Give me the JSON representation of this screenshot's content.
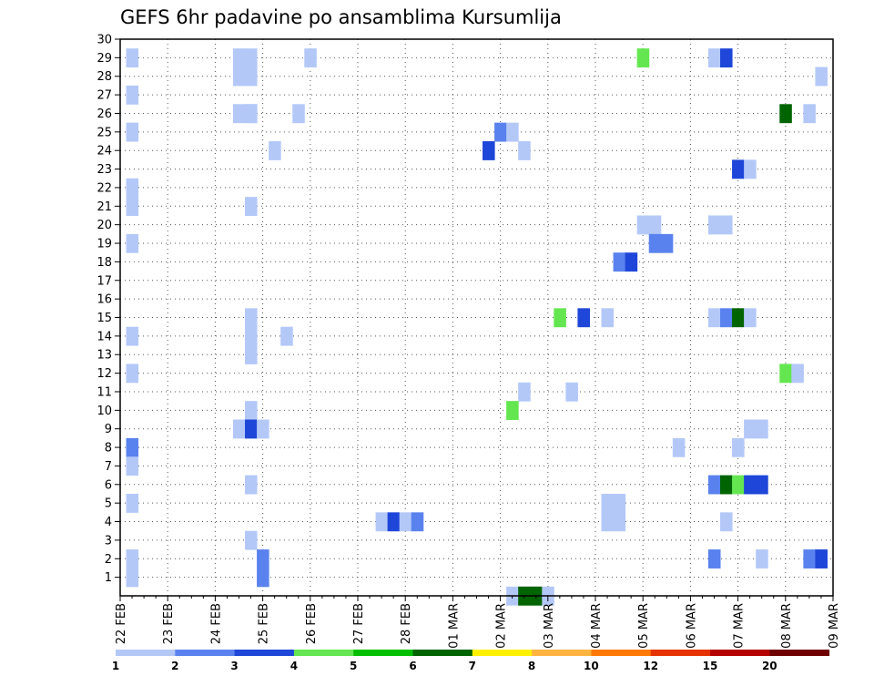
{
  "chart_data": {
    "type": "heatmap",
    "title": "GEFS 6hr padavine po ansamblima Kursumlija",
    "x_tick_labels": [
      "22 FEB",
      "23 FEB",
      "24 FEB",
      "25 FEB",
      "26 FEB",
      "27 FEB",
      "28 FEB",
      "01 MAR",
      "02 MAR",
      "03 MAR",
      "04 MAR",
      "05 MAR",
      "06 MAR",
      "07 MAR",
      "08 MAR",
      "09 MAR"
    ],
    "xlim_days": [
      0,
      15
    ],
    "y_tick_labels": [
      "1",
      "2",
      "3",
      "4",
      "5",
      "6",
      "7",
      "8",
      "9",
      "10",
      "11",
      "12",
      "13",
      "14",
      "15",
      "16",
      "17",
      "18",
      "19",
      "20",
      "21",
      "22",
      "23",
      "24",
      "25",
      "26",
      "27",
      "28",
      "29",
      "30"
    ],
    "ylim": [
      0,
      30
    ],
    "grid": true,
    "legend": {
      "placement": "bottom",
      "colors": [
        "#b4c8f8",
        "#5a82ee",
        "#1e46d8",
        "#64e650",
        "#00be00",
        "#006400",
        "#fff000",
        "#ffb440",
        "#ff7800",
        "#e63200",
        "#b40000",
        "#6e0000"
      ],
      "labels": [
        "1",
        "2",
        "3",
        "4",
        "5",
        "6",
        "7",
        "8",
        "10",
        "12",
        "15",
        "20"
      ]
    },
    "cells": [
      {
        "d": 0.25,
        "m": 29,
        "c": 1
      },
      {
        "d": 0.25,
        "m": 27,
        "c": 1
      },
      {
        "d": 0.25,
        "m": 25,
        "c": 1
      },
      {
        "d": 0.25,
        "m": 22,
        "c": 1
      },
      {
        "d": 0.25,
        "m": 21,
        "c": 1
      },
      {
        "d": 0.25,
        "m": 19,
        "c": 1
      },
      {
        "d": 0.25,
        "m": 14,
        "c": 1
      },
      {
        "d": 0.25,
        "m": 12,
        "c": 1
      },
      {
        "d": 0.25,
        "m": 8,
        "c": 2
      },
      {
        "d": 0.25,
        "m": 7,
        "c": 1
      },
      {
        "d": 0.25,
        "m": 5,
        "c": 1
      },
      {
        "d": 0.25,
        "m": 2,
        "c": 1
      },
      {
        "d": 0.25,
        "m": 1,
        "c": 1
      },
      {
        "d": 2.5,
        "m": 29,
        "c": 1
      },
      {
        "d": 2.5,
        "m": 28,
        "c": 1
      },
      {
        "d": 2.5,
        "m": 26,
        "c": 1
      },
      {
        "d": 2.75,
        "m": 26,
        "c": 1
      },
      {
        "d": 2.75,
        "m": 29,
        "c": 1
      },
      {
        "d": 2.75,
        "m": 28,
        "c": 1
      },
      {
        "d": 2.75,
        "m": 26,
        "c": 1
      },
      {
        "d": 2.75,
        "m": 21,
        "c": 1
      },
      {
        "d": 2.75,
        "m": 15,
        "c": 1
      },
      {
        "d": 2.75,
        "m": 14,
        "c": 1
      },
      {
        "d": 2.75,
        "m": 13,
        "c": 1
      },
      {
        "d": 2.75,
        "m": 10,
        "c": 1
      },
      {
        "d": 2.5,
        "m": 9,
        "c": 1
      },
      {
        "d": 2.75,
        "m": 9,
        "c": 3
      },
      {
        "d": 2.75,
        "m": 6,
        "c": 1
      },
      {
        "d": 2.75,
        "m": 3,
        "c": 1
      },
      {
        "d": 3.0,
        "m": 2,
        "c": 2
      },
      {
        "d": 3.0,
        "m": 1,
        "c": 2
      },
      {
        "d": 3.0,
        "m": 9,
        "c": 1
      },
      {
        "d": 3.25,
        "m": 24,
        "c": 1
      },
      {
        "d": 3.5,
        "m": 14,
        "c": 1
      },
      {
        "d": 3.75,
        "m": 26,
        "c": 1
      },
      {
        "d": 4.0,
        "m": 29,
        "c": 1
      },
      {
        "d": 5.5,
        "m": 4,
        "c": 1
      },
      {
        "d": 5.75,
        "m": 4,
        "c": 3
      },
      {
        "d": 6.0,
        "m": 4,
        "c": 1
      },
      {
        "d": 6.25,
        "m": 4,
        "c": 2
      },
      {
        "d": 7.75,
        "m": 24,
        "c": 3
      },
      {
        "d": 8.0,
        "m": 25,
        "c": 2
      },
      {
        "d": 8.25,
        "m": 25,
        "c": 1
      },
      {
        "d": 8.25,
        "m": 10,
        "c": 4
      },
      {
        "d": 8.25,
        "m": 0,
        "c": 1
      },
      {
        "d": 8.5,
        "m": 24,
        "c": 1
      },
      {
        "d": 8.5,
        "m": 11,
        "c": 1
      },
      {
        "d": 8.5,
        "m": 0,
        "c": 6
      },
      {
        "d": 8.75,
        "m": 0,
        "c": 6
      },
      {
        "d": 9.0,
        "m": 0,
        "c": 1
      },
      {
        "d": 9.25,
        "m": 15,
        "c": 4
      },
      {
        "d": 9.5,
        "m": 11,
        "c": 1
      },
      {
        "d": 9.75,
        "m": 15,
        "c": 3
      },
      {
        "d": 10.25,
        "m": 15,
        "c": 1
      },
      {
        "d": 10.25,
        "m": 5,
        "c": 1
      },
      {
        "d": 10.5,
        "m": 5,
        "c": 1
      },
      {
        "d": 10.25,
        "m": 4,
        "c": 1
      },
      {
        "d": 10.5,
        "m": 4,
        "c": 1
      },
      {
        "d": 10.5,
        "m": 18,
        "c": 2
      },
      {
        "d": 10.75,
        "m": 18,
        "c": 3
      },
      {
        "d": 11.0,
        "m": 29,
        "c": 4
      },
      {
        "d": 11.0,
        "m": 20,
        "c": 1
      },
      {
        "d": 11.25,
        "m": 20,
        "c": 1
      },
      {
        "d": 11.25,
        "m": 19,
        "c": 2
      },
      {
        "d": 11.5,
        "m": 19,
        "c": 2
      },
      {
        "d": 11.75,
        "m": 8,
        "c": 1
      },
      {
        "d": 12.5,
        "m": 29,
        "c": 1
      },
      {
        "d": 12.75,
        "m": 29,
        "c": 3
      },
      {
        "d": 12.5,
        "m": 20,
        "c": 1
      },
      {
        "d": 12.75,
        "m": 20,
        "c": 1
      },
      {
        "d": 12.5,
        "m": 15,
        "c": 1
      },
      {
        "d": 12.75,
        "m": 15,
        "c": 2
      },
      {
        "d": 13.0,
        "m": 15,
        "c": 6
      },
      {
        "d": 13.25,
        "m": 15,
        "c": 1
      },
      {
        "d": 12.5,
        "m": 6,
        "c": 2
      },
      {
        "d": 12.75,
        "m": 6,
        "c": 6
      },
      {
        "d": 13.0,
        "m": 6,
        "c": 4
      },
      {
        "d": 13.25,
        "m": 6,
        "c": 3
      },
      {
        "d": 13.5,
        "m": 6,
        "c": 3
      },
      {
        "d": 12.75,
        "m": 4,
        "c": 1
      },
      {
        "d": 12.5,
        "m": 2,
        "c": 2
      },
      {
        "d": 13.0,
        "m": 23,
        "c": 3
      },
      {
        "d": 13.25,
        "m": 23,
        "c": 1
      },
      {
        "d": 13.0,
        "m": 8,
        "c": 1
      },
      {
        "d": 13.25,
        "m": 9,
        "c": 1
      },
      {
        "d": 13.5,
        "m": 9,
        "c": 1
      },
      {
        "d": 13.5,
        "m": 2,
        "c": 1
      },
      {
        "d": 14.0,
        "m": 26,
        "c": 6
      },
      {
        "d": 14.5,
        "m": 26,
        "c": 1
      },
      {
        "d": 14.0,
        "m": 12,
        "c": 4
      },
      {
        "d": 14.25,
        "m": 12,
        "c": 1
      },
      {
        "d": 14.75,
        "m": 28,
        "c": 1
      },
      {
        "d": 14.5,
        "m": 2,
        "c": 2
      },
      {
        "d": 14.75,
        "m": 2,
        "c": 3
      }
    ]
  }
}
